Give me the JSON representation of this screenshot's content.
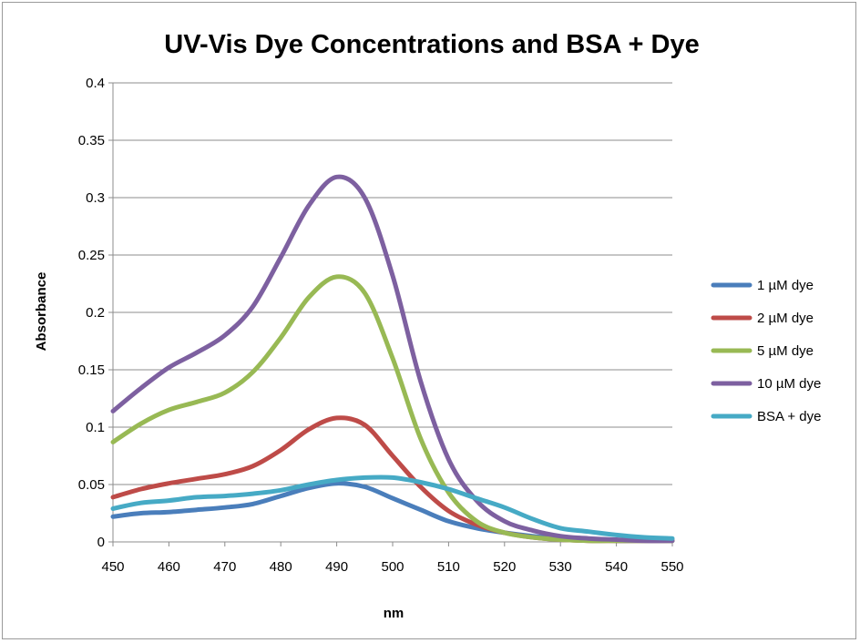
{
  "chart_data": {
    "type": "line",
    "title": "UV-Vis Dye Concentrations and BSA + Dye",
    "xlabel": "nm",
    "ylabel": "Absorbance",
    "xlim": [
      450,
      550
    ],
    "ylim": [
      0,
      0.4
    ],
    "grid": true,
    "legend_position": "right",
    "x_ticks": [
      "450",
      "460",
      "470",
      "480",
      "490",
      "500",
      "510",
      "520",
      "530",
      "540",
      "550"
    ],
    "y_ticks": [
      "0",
      "0.05",
      "0.1",
      "0.15",
      "0.2",
      "0.25",
      "0.3",
      "0.35",
      "0.4"
    ],
    "x_tick_values": [
      450,
      460,
      470,
      480,
      490,
      500,
      510,
      520,
      530,
      540,
      550
    ],
    "y_tick_values": [
      0,
      0.05,
      0.1,
      0.15,
      0.2,
      0.25,
      0.3,
      0.35,
      0.4
    ],
    "x": [
      450,
      455,
      460,
      465,
      470,
      475,
      480,
      485,
      490,
      495,
      500,
      505,
      510,
      515,
      520,
      525,
      530,
      535,
      540,
      545,
      550
    ],
    "series": [
      {
        "name": "1 µM dye",
        "color": "#4a7ebb",
        "values": [
          0.022,
          0.025,
          0.026,
          0.028,
          0.03,
          0.033,
          0.04,
          0.047,
          0.051,
          0.048,
          0.038,
          0.028,
          0.018,
          0.012,
          0.008,
          0.005,
          0.003,
          0.002,
          0.001,
          0.001,
          0.001
        ]
      },
      {
        "name": "2 µM dye",
        "color": "#be4b48",
        "values": [
          0.039,
          0.046,
          0.051,
          0.055,
          0.059,
          0.066,
          0.08,
          0.098,
          0.108,
          0.102,
          0.075,
          0.048,
          0.027,
          0.015,
          0.008,
          0.004,
          0.002,
          0.001,
          0.001,
          0.001,
          0.001
        ]
      },
      {
        "name": "5 µM dye",
        "color": "#98b954",
        "values": [
          0.087,
          0.103,
          0.115,
          0.122,
          0.13,
          0.148,
          0.178,
          0.213,
          0.231,
          0.217,
          0.16,
          0.09,
          0.043,
          0.018,
          0.008,
          0.004,
          0.002,
          0.001,
          0.001,
          0.001,
          0.001
        ]
      },
      {
        "name": "10 µM dye",
        "color": "#7d60a0",
        "values": [
          0.114,
          0.134,
          0.152,
          0.165,
          0.18,
          0.205,
          0.248,
          0.293,
          0.318,
          0.3,
          0.232,
          0.14,
          0.072,
          0.036,
          0.018,
          0.01,
          0.005,
          0.003,
          0.002,
          0.001,
          0.001
        ]
      },
      {
        "name": "BSA + dye",
        "color": "#46aac5",
        "values": [
          0.029,
          0.034,
          0.036,
          0.039,
          0.04,
          0.042,
          0.045,
          0.05,
          0.054,
          0.056,
          0.056,
          0.052,
          0.046,
          0.038,
          0.03,
          0.02,
          0.012,
          0.009,
          0.006,
          0.004,
          0.003
        ]
      }
    ]
  }
}
